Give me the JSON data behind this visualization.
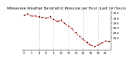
{
  "title": "Milwaukee Weather Barometric Pressure per Hour (Last 24 Hours)",
  "hours": [
    0,
    1,
    2,
    3,
    4,
    5,
    6,
    7,
    8,
    9,
    10,
    11,
    12,
    13,
    14,
    15,
    16,
    17,
    18,
    19,
    20,
    21,
    22,
    23
  ],
  "pressure_dots": [
    29.92,
    29.97,
    29.88,
    29.9,
    29.85,
    29.83,
    29.8,
    29.85,
    29.75,
    29.68,
    29.72,
    29.6,
    29.48,
    29.38,
    29.2,
    29.08,
    28.95,
    28.82,
    28.72,
    28.65,
    28.72,
    28.8,
    28.88,
    28.85
  ],
  "pressure_line": [
    29.9,
    29.95,
    29.86,
    29.88,
    29.83,
    29.8,
    29.78,
    29.82,
    29.72,
    29.65,
    29.7,
    29.57,
    29.45,
    29.35,
    29.17,
    29.05,
    28.92,
    28.79,
    28.7,
    28.62,
    28.7,
    28.78,
    28.85,
    28.83
  ],
  "ylim": [
    28.5,
    30.1
  ],
  "ytick_values": [
    29.0,
    29.2,
    29.4,
    29.6,
    29.8,
    30.0
  ],
  "ytick_labels": [
    "29.0",
    "29.2",
    "29.4",
    "29.6",
    "29.8",
    "30.0"
  ],
  "xlim": [
    -0.5,
    23.5
  ],
  "xtick_positions": [
    0,
    2,
    4,
    6,
    8,
    10,
    12,
    14,
    16,
    18,
    20,
    22
  ],
  "xtick_labels": [
    "0",
    "2",
    "4",
    "6",
    "8",
    "10",
    "12",
    "14",
    "16",
    "18",
    "20",
    "22"
  ],
  "vgrid_positions": [
    4,
    8,
    12,
    16,
    20
  ],
  "bg_color": "#ffffff",
  "dot_color": "#000000",
  "line_color": "#dd0000",
  "grid_color": "#aaaaaa",
  "title_fontsize": 3.8,
  "tick_fontsize": 3.0,
  "dot_size": 1.5,
  "line_width": 0.8
}
